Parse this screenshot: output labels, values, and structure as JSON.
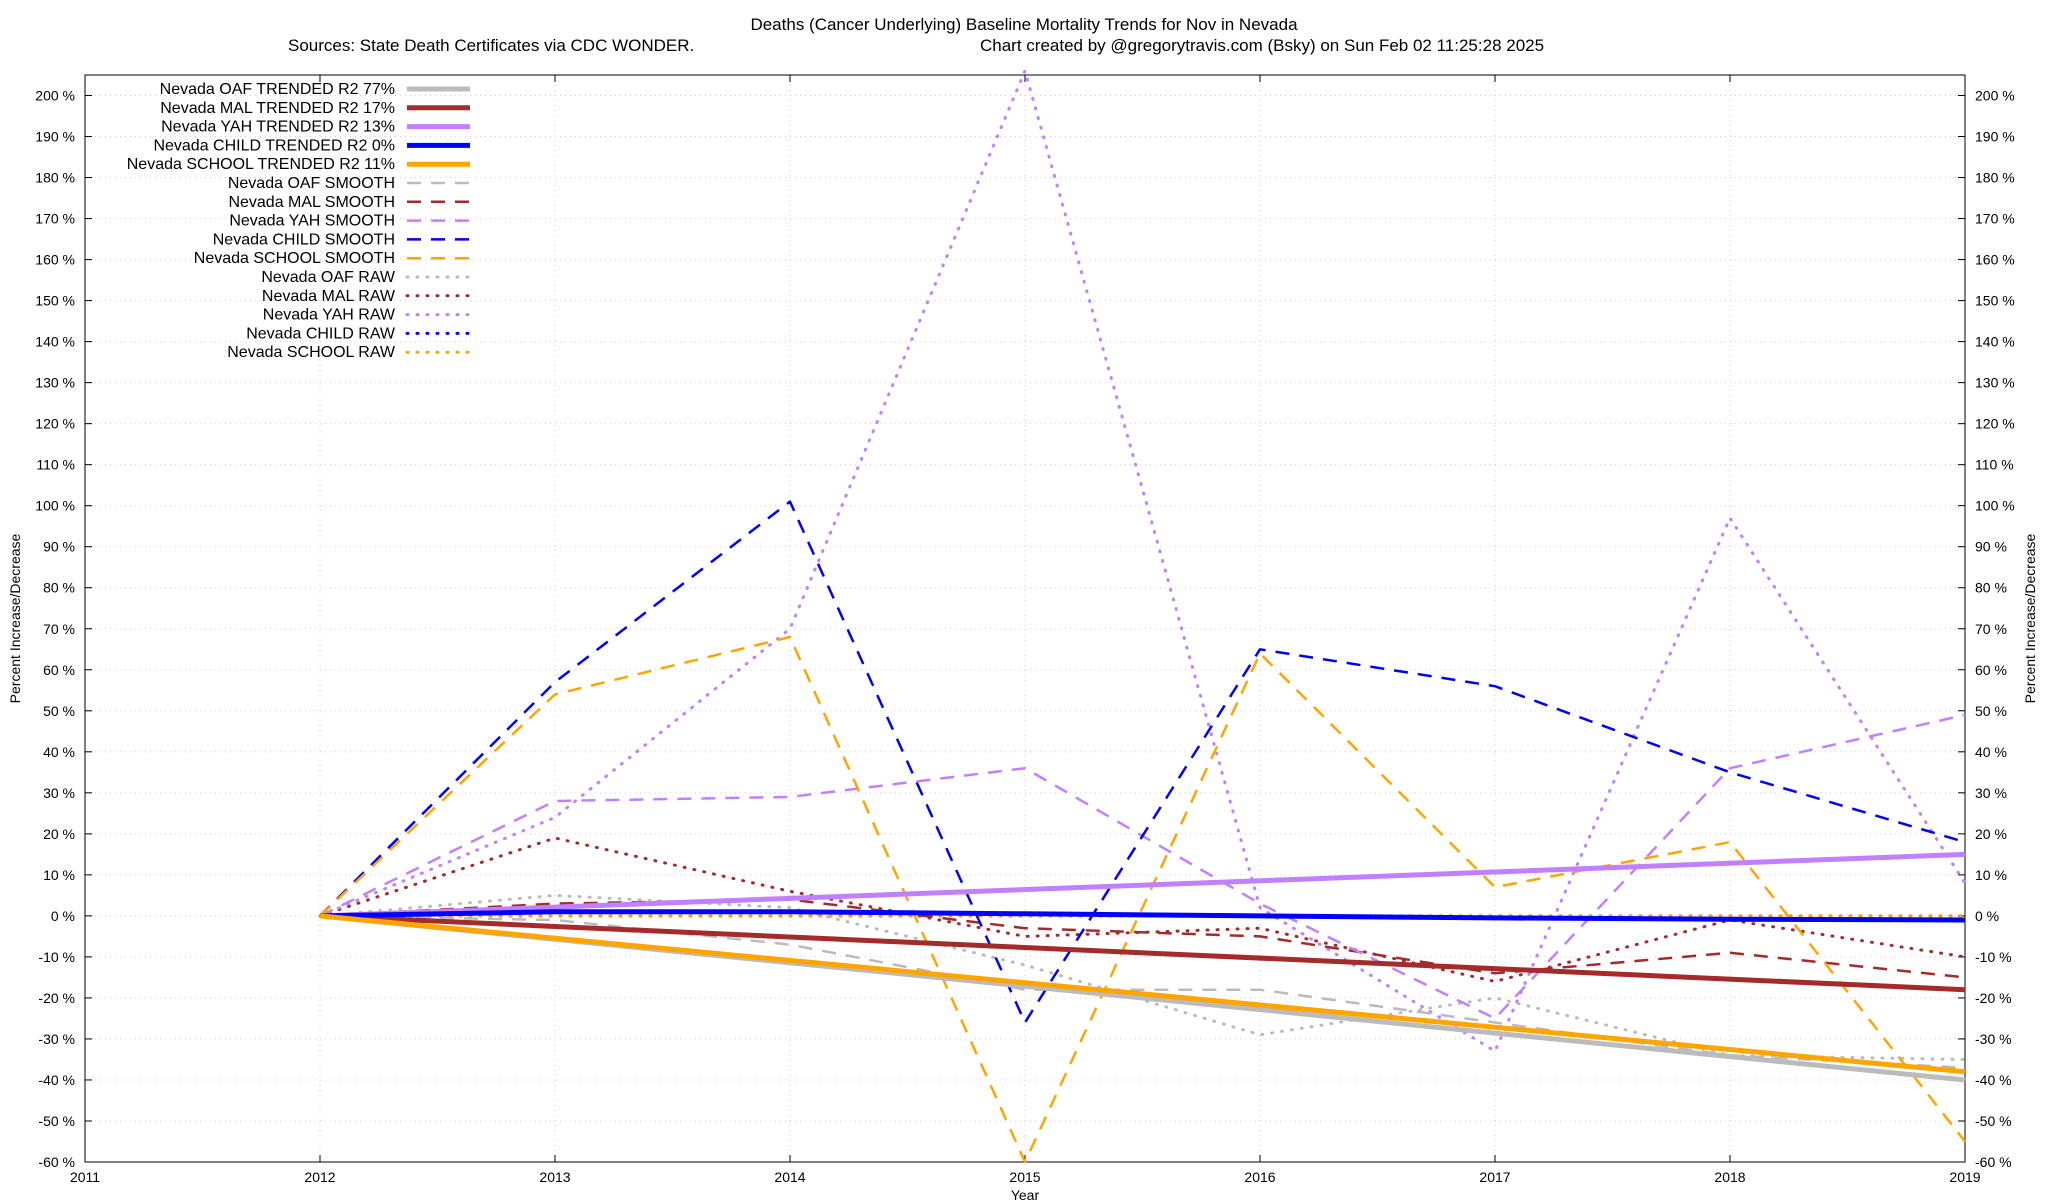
{
  "chart_data": {
    "type": "line",
    "title": "Deaths (Cancer Underlying)  Baseline Mortality Trends for Nov in Nevada",
    "subtitle_left": "Sources: State Death Certificates via CDC WONDER.",
    "subtitle_right": "Chart created by @gregorytravis.com (Bsky) on Sun Feb 02 11:25:28 2025",
    "xlabel": "Year",
    "ylabel_left": "Percent Increase/Decrease",
    "ylabel_right": "Percent Increase/Decrease",
    "xlim": [
      2011,
      2019
    ],
    "ylim": [
      -60,
      205
    ],
    "x_ticks": [
      2011,
      2012,
      2013,
      2014,
      2015,
      2016,
      2017,
      2018,
      2019
    ],
    "x_tick_labels": [
      "2011",
      "2012",
      "2013",
      "2014",
      "2015",
      "2016",
      "2017",
      "2018",
      "2019"
    ],
    "y_ticks": [
      -60,
      -50,
      -40,
      -30,
      -20,
      -10,
      0,
      10,
      20,
      30,
      40,
      50,
      60,
      70,
      80,
      90,
      100,
      110,
      120,
      130,
      140,
      150,
      160,
      170,
      180,
      190,
      200
    ],
    "y_tick_labels": [
      "-60 %",
      "-50 %",
      "-40 %",
      "-30 %",
      "-20 %",
      "-10 %",
      "0 %",
      "10 %",
      "20 %",
      "30 %",
      "40 %",
      "50 %",
      "60 %",
      "70 %",
      "80 %",
      "90 %",
      "100 %",
      "110 %",
      "120 %",
      "130 %",
      "140 %",
      "150 %",
      "160 %",
      "170 %",
      "180 %",
      "190 %",
      "200 %"
    ],
    "grid": true,
    "legend_position": "top-left",
    "series": [
      {
        "name": "Nevada OAF TRENDED R2  77%",
        "style": "trend",
        "color": "#bbbbbb",
        "x": [
          2012,
          2019
        ],
        "values": [
          0,
          -40
        ]
      },
      {
        "name": "Nevada MAL TRENDED R2  17%",
        "style": "trend",
        "color": "#a52a2a",
        "x": [
          2012,
          2019
        ],
        "values": [
          0,
          -18
        ]
      },
      {
        "name": "Nevada YAH TRENDED R2  13%",
        "style": "trend",
        "color": "#c080ff",
        "x": [
          2012,
          2019
        ],
        "values": [
          0,
          15
        ]
      },
      {
        "name": "Nevada CHILD TRENDED R2   0%",
        "style": "trend",
        "color": "#0000ff",
        "x": [
          2012,
          2013,
          2014,
          2015,
          2016,
          2017,
          2018,
          2019
        ],
        "values": [
          0,
          1,
          1,
          0.5,
          0,
          -0.5,
          -0.8,
          -1
        ]
      },
      {
        "name": "Nevada SCHOOL TRENDED R2  11%",
        "style": "trend",
        "color": "#ffa500",
        "x": [
          2012,
          2019
        ],
        "values": [
          0,
          -38
        ]
      },
      {
        "name": "Nevada OAF SMOOTH",
        "style": "smooth",
        "color": "#bbbbbb",
        "x": [
          2012,
          2013,
          2014,
          2015,
          2016,
          2017,
          2018,
          2019
        ],
        "values": [
          0,
          -1,
          -7,
          -18,
          -18,
          -26,
          -34,
          -37
        ]
      },
      {
        "name": "Nevada MAL SMOOTH",
        "style": "smooth",
        "color": "#a52a2a",
        "x": [
          2012,
          2013,
          2014,
          2015,
          2016,
          2017,
          2018,
          2019
        ],
        "values": [
          0,
          3,
          4,
          -3,
          -5,
          -14,
          -9,
          -15
        ]
      },
      {
        "name": "Nevada YAH SMOOTH",
        "style": "smooth",
        "color": "#c080ff",
        "x": [
          2012,
          2013,
          2014,
          2015,
          2016,
          2017,
          2018,
          2019
        ],
        "values": [
          0,
          28,
          29,
          36,
          3,
          -25,
          36,
          49
        ]
      },
      {
        "name": "Nevada CHILD SMOOTH",
        "style": "smooth",
        "color": "#0000ff",
        "x": [
          2012,
          2013,
          2014,
          2015,
          2016,
          2017,
          2018,
          2019
        ],
        "values": [
          0,
          57,
          101,
          -26,
          65,
          56,
          35,
          18
        ]
      },
      {
        "name": "Nevada SCHOOL SMOOTH",
        "style": "smooth",
        "color": "#ffa500",
        "x": [
          2012,
          2013,
          2014,
          2015,
          2016,
          2017,
          2018,
          2019
        ],
        "values": [
          0,
          54,
          68,
          -60,
          64,
          7,
          18,
          -55
        ]
      },
      {
        "name": "Nevada OAF RAW",
        "style": "raw",
        "color": "#bbbbbb",
        "x": [
          2012,
          2013,
          2014,
          2015,
          2016,
          2017,
          2018,
          2019
        ],
        "values": [
          0,
          5,
          2,
          -12,
          -29,
          -20,
          -34,
          -35
        ]
      },
      {
        "name": "Nevada MAL RAW",
        "style": "raw",
        "color": "#a52a2a",
        "x": [
          2012,
          2013,
          2014,
          2015,
          2016,
          2017,
          2018,
          2019
        ],
        "values": [
          0,
          19,
          6,
          -5,
          -3,
          -16,
          -1,
          -10
        ]
      },
      {
        "name": "Nevada YAH RAW",
        "style": "raw",
        "color": "#c080ff",
        "x": [
          2012,
          2013,
          2014,
          2015,
          2016,
          2017,
          2018,
          2019
        ],
        "values": [
          0,
          24,
          70,
          206,
          2,
          -33,
          97,
          8
        ]
      },
      {
        "name": "Nevada CHILD RAW",
        "style": "raw",
        "color": "#0000ff",
        "x": [
          2012,
          2013,
          2014,
          2015,
          2016,
          2017,
          2018,
          2019
        ],
        "values": [
          0,
          0,
          0,
          0,
          0,
          0,
          0,
          0
        ]
      },
      {
        "name": "Nevada SCHOOL RAW",
        "style": "raw",
        "color": "#ffa500",
        "x": [
          2012,
          2013,
          2014,
          2015,
          2016,
          2017,
          2018,
          2019
        ],
        "values": [
          0,
          0,
          0,
          0,
          0,
          0,
          0,
          0
        ]
      }
    ]
  }
}
